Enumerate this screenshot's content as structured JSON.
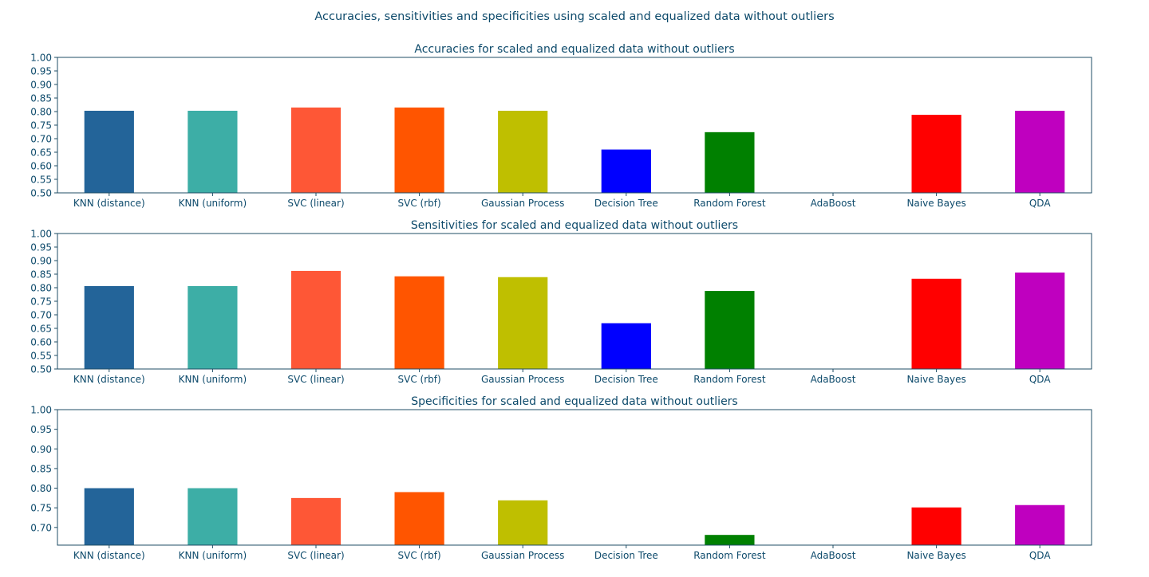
{
  "figure": {
    "suptitle": "Accuracies, sensitivities and specificities using scaled and equalized data without outliers"
  },
  "theme": {
    "text_color": "#0d4a6b",
    "axis_color": "#1f4e66"
  },
  "chart_data": [
    {
      "type": "bar",
      "title": "Accuracies for scaled and equalized data without outliers",
      "xlabel": "",
      "ylabel": "",
      "ylim": [
        0.5,
        1.0
      ],
      "yticks": [
        0.5,
        0.55,
        0.6,
        0.65,
        0.7,
        0.75,
        0.8,
        0.85,
        0.9,
        0.95,
        1.0
      ],
      "grid": false,
      "categories": [
        "KNN (distance)",
        "KNN (uniform)",
        "SVC (linear)",
        "SVC (rbf)",
        "Gaussian Process",
        "Decision Tree",
        "Random Forest",
        "AdaBoost",
        "Naive Bayes",
        "QDA"
      ],
      "values": [
        0.803,
        0.803,
        0.815,
        0.815,
        0.803,
        0.66,
        0.724,
        0.5,
        0.788,
        0.803
      ],
      "colors": [
        "#236499",
        "#3daea6",
        "#fe5736",
        "#ff5500",
        "#bfbf00",
        "#0000ff",
        "#008000",
        "#ffffff",
        "#ff0000",
        "#bf00bf"
      ]
    },
    {
      "type": "bar",
      "title": "Sensitivities for scaled and equalized data without outliers",
      "xlabel": "",
      "ylabel": "",
      "ylim": [
        0.5,
        1.0
      ],
      "yticks": [
        0.5,
        0.55,
        0.6,
        0.65,
        0.7,
        0.75,
        0.8,
        0.85,
        0.9,
        0.95,
        1.0
      ],
      "grid": false,
      "categories": [
        "KNN (distance)",
        "KNN (uniform)",
        "SVC (linear)",
        "SVC (rbf)",
        "Gaussian Process",
        "Decision Tree",
        "Random Forest",
        "AdaBoost",
        "Naive Bayes",
        "QDA"
      ],
      "values": [
        0.806,
        0.806,
        0.862,
        0.842,
        0.839,
        0.669,
        0.788,
        0.5,
        0.833,
        0.856
      ],
      "colors": [
        "#236499",
        "#3daea6",
        "#fe5736",
        "#ff5500",
        "#bfbf00",
        "#0000ff",
        "#008000",
        "#ffffff",
        "#ff0000",
        "#bf00bf"
      ]
    },
    {
      "type": "bar",
      "title": "Specificities for scaled and equalized data without outliers",
      "xlabel": "",
      "ylabel": "",
      "ylim": [
        0.655,
        1.0
      ],
      "yticks": [
        0.7,
        0.75,
        0.8,
        0.85,
        0.9,
        0.95,
        1.0
      ],
      "grid": false,
      "categories": [
        "KNN (distance)",
        "KNN (uniform)",
        "SVC (linear)",
        "SVC (rbf)",
        "Gaussian Process",
        "Decision Tree",
        "Random Forest",
        "AdaBoost",
        "Naive Bayes",
        "QDA"
      ],
      "values": [
        0.8,
        0.8,
        0.775,
        0.79,
        0.769,
        0.655,
        0.681,
        0.655,
        0.751,
        0.757
      ],
      "colors": [
        "#236499",
        "#3daea6",
        "#fe5736",
        "#ff5500",
        "#bfbf00",
        "#0000ff",
        "#008000",
        "#ffffff",
        "#ff0000",
        "#bf00bf"
      ]
    }
  ]
}
